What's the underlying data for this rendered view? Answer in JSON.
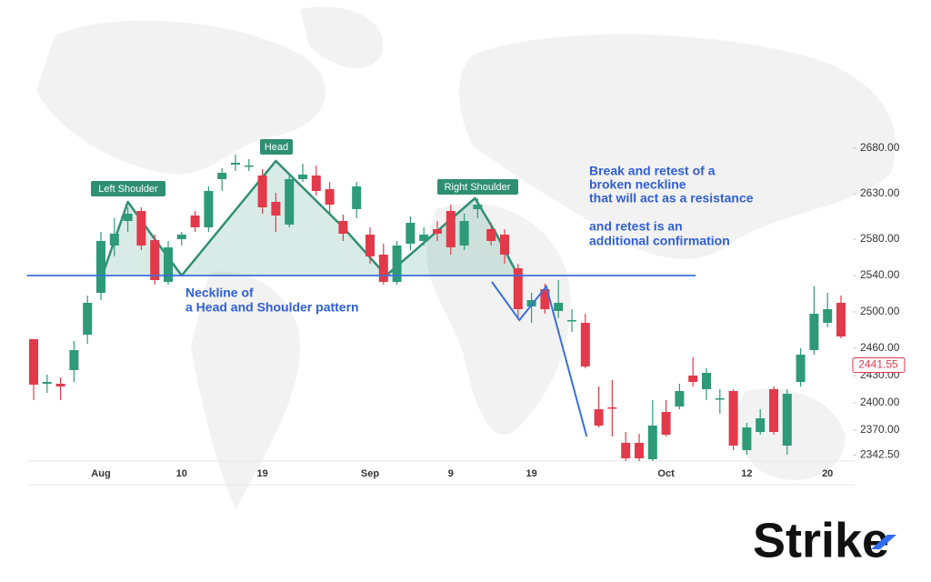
{
  "chart_data": {
    "type": "candlestick",
    "categories": [
      null,
      null,
      null,
      null,
      null,
      "Aug",
      null,
      null,
      null,
      null,
      null,
      "10",
      null,
      null,
      null,
      null,
      null,
      "19",
      null,
      null,
      null,
      null,
      null,
      null,
      null,
      "Sep",
      null,
      null,
      null,
      null,
      null,
      "9",
      null,
      null,
      null,
      null,
      null,
      "19",
      null,
      null,
      null,
      null,
      null,
      null,
      null,
      null,
      null,
      "Oct",
      null,
      null,
      null,
      null,
      null,
      "12",
      null,
      null,
      null,
      null,
      null,
      "20",
      null
    ],
    "open": [
      2470,
      2421,
      2421,
      2436,
      2475,
      2521,
      2573,
      2600,
      2611,
      2579,
      2533,
      2580,
      2606,
      2593,
      2646,
      2662,
      2661,
      2650,
      2621,
      2596,
      2646,
      2650,
      2635,
      2600,
      2613,
      2585,
      2563,
      2533,
      2575,
      2578,
      2591,
      2611,
      2573,
      2613,
      2591,
      2585,
      2548,
      2506,
      2525,
      2501,
      2490,
      2488,
      2393,
      2395,
      2356,
      2356,
      2338,
      2390,
      2396,
      2430,
      2415,
      2405,
      2413,
      2348,
      2368,
      2415,
      2353,
      2423,
      2458,
      2488,
      2510
    ],
    "high": [
      2470,
      2431,
      2428,
      2468,
      2518,
      2588,
      2603,
      2615,
      2615,
      2585,
      2578,
      2588,
      2611,
      2638,
      2658,
      2673,
      2668,
      2657,
      2631,
      2653,
      2663,
      2661,
      2643,
      2607,
      2643,
      2593,
      2575,
      2578,
      2605,
      2593,
      2600,
      2618,
      2608,
      2625,
      2598,
      2591,
      2553,
      2521,
      2531,
      2535,
      2503,
      2498,
      2418,
      2425,
      2368,
      2366,
      2403,
      2403,
      2421,
      2450,
      2438,
      2415,
      2415,
      2378,
      2393,
      2418,
      2415,
      2460,
      2528,
      2521,
      2518
    ],
    "low": [
      2403,
      2411,
      2403,
      2423,
      2465,
      2513,
      2561,
      2588,
      2568,
      2530,
      2530,
      2573,
      2588,
      2588,
      2633,
      2655,
      2655,
      2608,
      2588,
      2593,
      2643,
      2628,
      2608,
      2578,
      2603,
      2553,
      2530,
      2530,
      2568,
      2573,
      2578,
      2563,
      2568,
      2603,
      2573,
      2553,
      2493,
      2488,
      2498,
      2493,
      2478,
      2438,
      2373,
      2363,
      2336,
      2336,
      2336,
      2363,
      2393,
      2418,
      2403,
      2388,
      2348,
      2343,
      2365,
      2365,
      2343,
      2418,
      2453,
      2483,
      2471
    ],
    "close": [
      2420,
      2423,
      2418,
      2458,
      2510,
      2578,
      2586,
      2608,
      2573,
      2535,
      2571,
      2585,
      2593,
      2633,
      2653,
      2664,
      2661,
      2615,
      2606,
      2646,
      2651,
      2633,
      2618,
      2586,
      2638,
      2561,
      2533,
      2573,
      2598,
      2585,
      2586,
      2571,
      2600,
      2618,
      2578,
      2563,
      2503,
      2513,
      2503,
      2510,
      2491,
      2440,
      2375,
      2394,
      2339,
      2339,
      2375,
      2365,
      2413,
      2423,
      2433,
      2405,
      2353,
      2373,
      2383,
      2368,
      2410,
      2453,
      2498,
      2503,
      2473
    ],
    "up_color": "#2e9a78",
    "down_color": "#e23a4a",
    "ylim": [
      2336,
      2703
    ],
    "yticks": [
      {
        "value": 2680,
        "label": "2680.00"
      },
      {
        "value": 2630,
        "label": "2630.00"
      },
      {
        "value": 2580,
        "label": "2580.00"
      },
      {
        "value": 2540,
        "label": "2540.00"
      },
      {
        "value": 2500,
        "label": "2500.00"
      },
      {
        "value": 2460,
        "label": "2460.00"
      },
      {
        "value": 2430,
        "label": "2430.00"
      },
      {
        "value": 2400,
        "label": "2400.00"
      },
      {
        "value": 2370,
        "label": "2370.00"
      },
      {
        "value": 2342.5,
        "label": "2342.50"
      }
    ],
    "last_price": 2441.55,
    "pattern": {
      "x": [
        5.1,
        7.0,
        9.1,
        11.0,
        18.0,
        23.0,
        26.2,
        32.8,
        34.3,
        36.0
      ],
      "y": [
        2540,
        2621,
        2578,
        2540,
        2666,
        2593,
        2540,
        2625,
        2588,
        2540
      ],
      "color": "#2f8f72"
    },
    "pattern_labels": [
      "Left Shoulder",
      "Head",
      "Right Shoulder"
    ],
    "neckline": {
      "x": [
        -0.5,
        49.2
      ],
      "y": 2540,
      "color": "#3b6fd8"
    },
    "retest": {
      "x": [
        34.05,
        36.1,
        38.1,
        41.1
      ],
      "y": [
        2533,
        2491,
        2528,
        2363
      ]
    },
    "neckline_note": [
      "Neckline of",
      "a Head and Shoulder pattern"
    ],
    "retest_note": [
      "Break and retest of a",
      "broken neckline",
      "that will act as a resistance",
      "and retest is an",
      "additional confirmation"
    ]
  },
  "logo": "Strike"
}
